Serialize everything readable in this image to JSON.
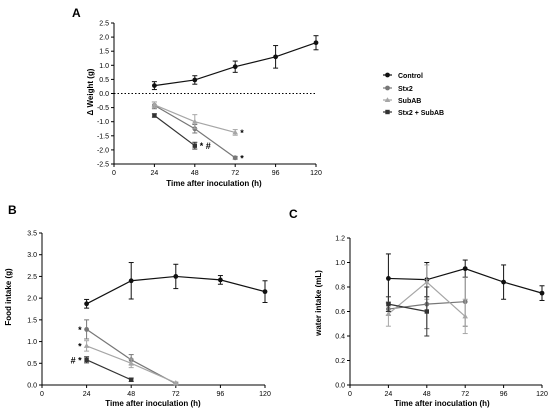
{
  "colors": {
    "Control": "#111111",
    "Stx2": "#777777",
    "SubAB": "#a6a6a6",
    "Stx2 + SubAB": "#333333"
  },
  "chart_data": [
    {
      "id": "A",
      "type": "line",
      "panel_label": "A",
      "title": "",
      "xlabel": "Time after inoculation (h)",
      "ylabel": "Δ Weight (g)",
      "xlim": [
        0,
        120
      ],
      "ylim": [
        -2.5,
        2.5
      ],
      "xticks": [
        0,
        24,
        48,
        72,
        96,
        120
      ],
      "yticks": [
        -2.5,
        -2.0,
        -1.5,
        -1.0,
        -0.5,
        0.0,
        0.5,
        1.0,
        1.5,
        2.0,
        2.5
      ],
      "yticklabels": [
        "-2.5",
        "-2.0",
        "-1.5",
        "-1.0",
        "-0.5",
        "0.0",
        "0.5",
        "1.0",
        "1.5",
        "2.0",
        "2.5"
      ],
      "reference_line": {
        "y": 0,
        "style": "dotted"
      },
      "legend": {
        "position": "right",
        "entries": [
          "Control",
          "Stx2",
          "SubAB",
          "Stx2 + SubAB"
        ]
      },
      "series": [
        {
          "name": "Control",
          "marker": "circle",
          "points": [
            {
              "x": 24,
              "y": 0.28,
              "err": 0.14
            },
            {
              "x": 48,
              "y": 0.48,
              "err": 0.15
            },
            {
              "x": 72,
              "y": 0.95,
              "err": 0.2
            },
            {
              "x": 96,
              "y": 1.3,
              "err": 0.4
            },
            {
              "x": 120,
              "y": 1.8,
              "err": 0.25
            }
          ]
        },
        {
          "name": "Stx2",
          "marker": "circle",
          "points": [
            {
              "x": 24,
              "y": -0.42,
              "err": 0.12
            },
            {
              "x": 48,
              "y": -1.25,
              "err": 0.15
            },
            {
              "x": 72,
              "y": -2.28,
              "err": 0.05
            }
          ]
        },
        {
          "name": "SubAB",
          "marker": "triangle",
          "points": [
            {
              "x": 24,
              "y": -0.4,
              "err": 0.1
            },
            {
              "x": 48,
              "y": -1.0,
              "err": 0.25
            },
            {
              "x": 72,
              "y": -1.38,
              "err": 0.1
            }
          ]
        },
        {
          "name": "Stx2 + SubAB",
          "marker": "square",
          "points": [
            {
              "x": 24,
              "y": -0.78,
              "err": 0.06
            },
            {
              "x": 48,
              "y": -1.85,
              "err": 0.12
            }
          ]
        }
      ],
      "annotations": [
        {
          "x": 72,
          "y": -1.38,
          "text": "*"
        },
        {
          "x": 72,
          "y": -2.28,
          "text": "*"
        },
        {
          "x": 48,
          "y": -1.85,
          "text": "* #"
        }
      ]
    },
    {
      "id": "B",
      "type": "line",
      "panel_label": "B",
      "title": "",
      "xlabel": "Time after inoculation (h)",
      "ylabel": "Food intake (g)",
      "xlim": [
        0,
        120
      ],
      "ylim": [
        0,
        3.5
      ],
      "xticks": [
        0,
        24,
        48,
        72,
        96,
        120
      ],
      "yticks": [
        0,
        0.5,
        1.0,
        1.5,
        2.0,
        2.5,
        3.0,
        3.5
      ],
      "yticklabels": [
        "0.0",
        "0.5",
        "1.0",
        "1.5",
        "2.0",
        "2.5",
        "3.0",
        "3.5"
      ],
      "series": [
        {
          "name": "Control",
          "marker": "circle",
          "points": [
            {
              "x": 24,
              "y": 1.87,
              "err": 0.1
            },
            {
              "x": 48,
              "y": 2.4,
              "err": 0.42
            },
            {
              "x": 72,
              "y": 2.5,
              "err": 0.28
            },
            {
              "x": 96,
              "y": 2.42,
              "err": 0.1
            },
            {
              "x": 120,
              "y": 2.15,
              "err": 0.25
            }
          ]
        },
        {
          "name": "Stx2",
          "marker": "circle",
          "points": [
            {
              "x": 24,
              "y": 1.28,
              "err": 0.22
            },
            {
              "x": 48,
              "y": 0.58,
              "err": 0.12
            },
            {
              "x": 72,
              "y": 0.03,
              "err": 0.02
            }
          ]
        },
        {
          "name": "SubAB",
          "marker": "triangle",
          "points": [
            {
              "x": 24,
              "y": 0.9,
              "err": 0.12
            },
            {
              "x": 48,
              "y": 0.5,
              "err": 0.1
            },
            {
              "x": 72,
              "y": 0.05,
              "err": 0.02
            }
          ]
        },
        {
          "name": "Stx2 + SubAB",
          "marker": "square",
          "points": [
            {
              "x": 24,
              "y": 0.58,
              "err": 0.07
            },
            {
              "x": 48,
              "y": 0.12,
              "err": 0.04
            }
          ]
        }
      ],
      "annotations": [
        {
          "x": 24,
          "y": 1.28,
          "text": "*",
          "side": "left"
        },
        {
          "x": 24,
          "y": 0.9,
          "text": "*",
          "side": "left"
        },
        {
          "x": 24,
          "y": 0.58,
          "text": "# *",
          "side": "left"
        }
      ]
    },
    {
      "id": "C",
      "type": "line",
      "panel_label": "C",
      "title": "",
      "xlabel": "Time after inoculation (h)",
      "ylabel": "water intake (mL)",
      "xlim": [
        0,
        120
      ],
      "ylim": [
        0,
        1.2
      ],
      "xticks": [
        0,
        24,
        48,
        72,
        96,
        120
      ],
      "yticks": [
        0,
        0.2,
        0.4,
        0.6,
        0.8,
        1.0,
        1.2
      ],
      "yticklabels": [
        "0.0",
        "0.2",
        "0.4",
        "0.6",
        "0.8",
        "1.0",
        "1.2"
      ],
      "series": [
        {
          "name": "Control",
          "marker": "circle",
          "points": [
            {
              "x": 24,
              "y": 0.87,
              "err": 0.2
            },
            {
              "x": 48,
              "y": 0.86,
              "err": 0.14
            },
            {
              "x": 72,
              "y": 0.95,
              "err": 0.07
            },
            {
              "x": 96,
              "y": 0.84,
              "err": 0.14
            },
            {
              "x": 120,
              "y": 0.75,
              "err": 0.06
            }
          ]
        },
        {
          "name": "Stx2",
          "marker": "circle",
          "points": [
            {
              "x": 24,
              "y": 0.62,
              "err": 0.05
            },
            {
              "x": 48,
              "y": 0.66,
              "err": 0.2
            },
            {
              "x": 72,
              "y": 0.68,
              "err": 0.2
            }
          ]
        },
        {
          "name": "SubAB",
          "marker": "triangle",
          "points": [
            {
              "x": 24,
              "y": 0.58,
              "err": 0.1
            },
            {
              "x": 48,
              "y": 0.84,
              "err": 0.14
            },
            {
              "x": 72,
              "y": 0.56,
              "err": 0.14
            }
          ]
        },
        {
          "name": "Stx2 + SubAB",
          "marker": "square",
          "points": [
            {
              "x": 24,
              "y": 0.66,
              "err": 0.06
            },
            {
              "x": 48,
              "y": 0.6,
              "err": 0.2
            }
          ]
        }
      ],
      "annotations": []
    }
  ]
}
